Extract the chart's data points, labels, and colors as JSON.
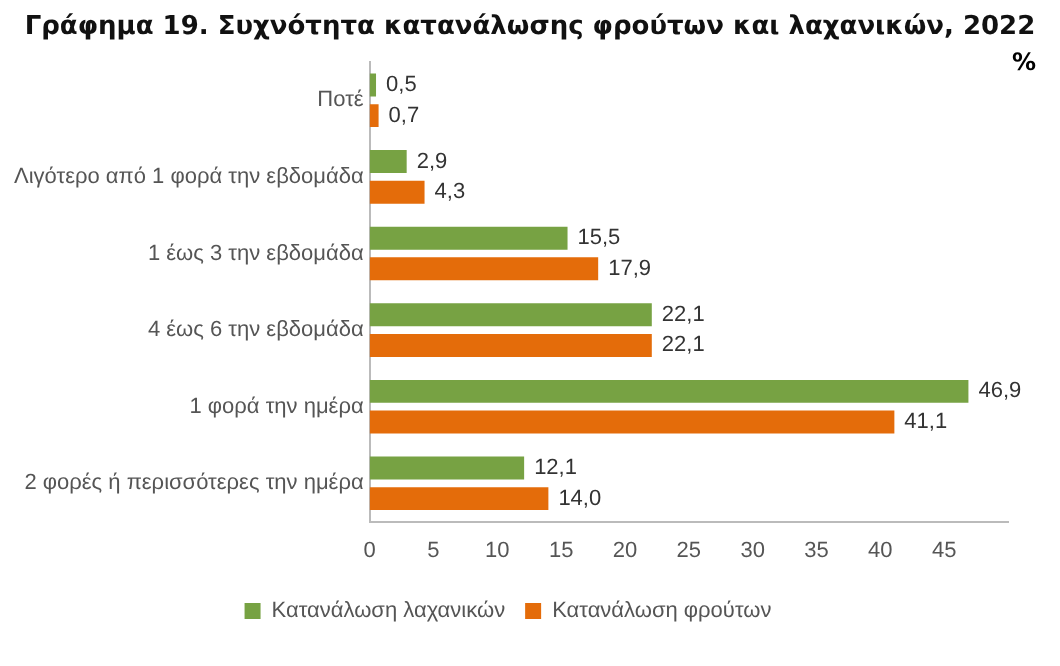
{
  "chart_data": {
    "type": "bar",
    "orientation": "horizontal",
    "title": "Γράφημα 19.  Συχνότητα κατανάλωσης φρούτων και λαχανικών, 2022",
    "annotations": [
      "%"
    ],
    "categories": [
      "Ποτέ",
      "Λιγότερο από 1 φορά την εβδομάδα",
      "1 έως 3 την εβδομάδα",
      "4 έως 6 την εβδομάδα",
      "1 φορά την ημέρα",
      "2 φορές ή περισσότερες την ημέρα"
    ],
    "series": [
      {
        "name": "Κατανάλωση λαχανικών",
        "color": "#77a243",
        "values": [
          0.5,
          2.9,
          15.5,
          22.1,
          46.9,
          12.1
        ],
        "value_labels": [
          "0,5",
          "2,9",
          "15,5",
          "22,1",
          "46,9",
          "12,1"
        ]
      },
      {
        "name": "Κατανάλωση φρούτων",
        "color": "#e46c0a",
        "values": [
          0.7,
          4.3,
          17.9,
          22.1,
          41.1,
          14.0
        ],
        "value_labels": [
          "0,7",
          "4,3",
          "17,9",
          "22,1",
          "41,1",
          "14,0"
        ]
      }
    ],
    "xlim": [
      0,
      50
    ],
    "xticks": [
      0,
      5,
      10,
      15,
      20,
      25,
      30,
      35,
      40,
      45
    ],
    "grid": false,
    "legend": "bottom"
  }
}
